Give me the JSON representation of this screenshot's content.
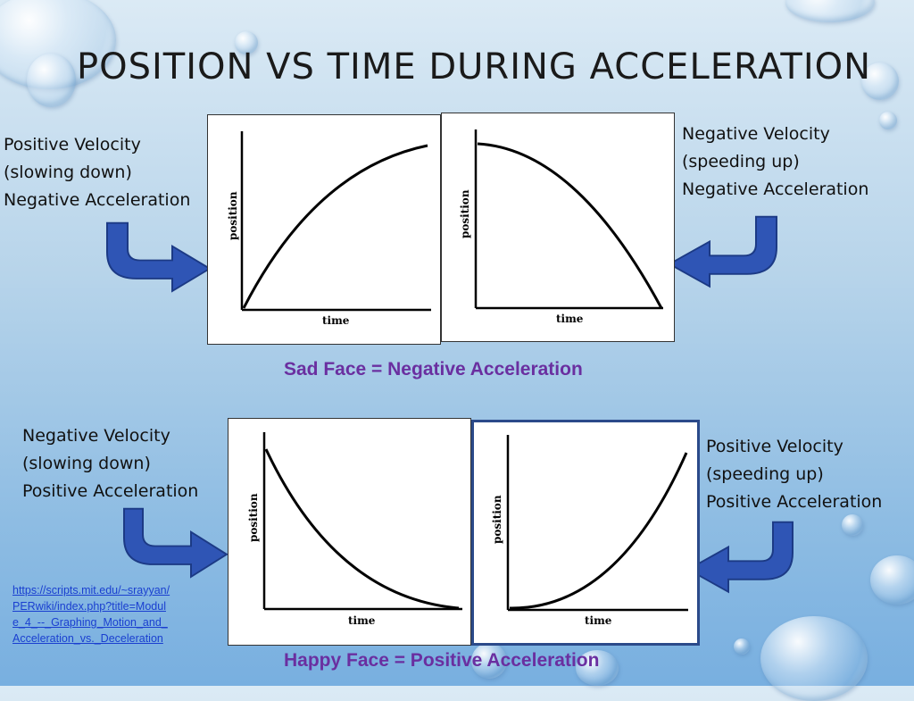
{
  "slide": {
    "title": "POSITION VS TIME DURING ACCELERATION",
    "colors": {
      "arrow_fill": "#2f55b5",
      "arrow_stroke": "#1c3a85",
      "caption": "#6a2fa0",
      "link": "#1a3fd0"
    }
  },
  "labels": {
    "top_left": [
      "Positive Velocity",
      "(slowing down)",
      "Negative Acceleration"
    ],
    "top_right": [
      "Negative Velocity",
      "(speeding up)",
      "Negative Acceleration"
    ],
    "bottom_left": [
      "Negative Velocity",
      "(slowing down)",
      "Positive Acceleration"
    ],
    "bottom_right": [
      "Positive Velocity",
      "(speeding up)",
      "Positive Acceleration"
    ]
  },
  "captions": {
    "top": "Sad Face = Negative Acceleration",
    "bottom": "Happy Face = Positive Acceleration"
  },
  "graphs": {
    "x_label": "time",
    "y_label": "position",
    "top_left_curve": "concave-down, increasing",
    "top_right_curve": "concave-down, decreasing",
    "bottom_left_curve": "concave-up, decreasing",
    "bottom_right_curve": "concave-up, increasing"
  },
  "source_link": "https://scripts.mit.edu/~srayyan/PERwiki/index.php?title=Module_4_--_Graphing_Motion_and_Acceleration_vs._Deceleration"
}
